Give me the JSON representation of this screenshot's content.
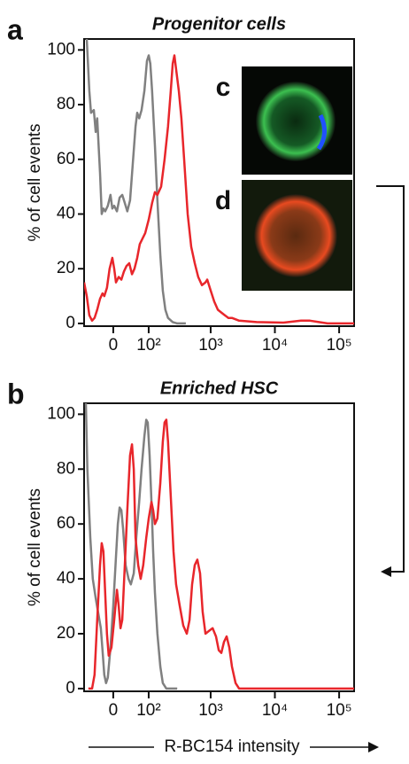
{
  "chart_data": [
    {
      "type": "line",
      "panel_label": "a",
      "title": "Progenitor cells",
      "ylabel": "% of cell events",
      "inset_labels": [
        "c",
        "d"
      ],
      "xscale": "asinh",
      "asinh_width": 61,
      "xlim": [
        -76,
        171000
      ],
      "ylim": [
        -1,
        104
      ],
      "xticks": [
        {
          "value": 0,
          "label": "0"
        },
        {
          "value": 100,
          "label": "10²"
        },
        {
          "value": 1000,
          "label": "10³"
        },
        {
          "value": 10000,
          "label": "10⁴"
        },
        {
          "value": 100000,
          "label": "10⁵"
        }
      ],
      "yticks": [
        0,
        20,
        40,
        60,
        80,
        100
      ],
      "series": [
        {
          "color": "#808080",
          "x": [
            -67,
            -59,
            -54,
            -46,
            -41,
            -37,
            -30,
            -26,
            -22,
            -18,
            -12,
            -6,
            -2,
            2,
            8,
            14,
            20,
            26,
            32,
            39,
            46,
            54,
            59,
            65,
            73,
            83,
            93,
            100,
            107,
            115,
            129,
            142,
            159,
            175,
            193,
            213,
            253,
            299,
            409
          ],
          "values": [
            104,
            85,
            77,
            78,
            70,
            75,
            55,
            40,
            42,
            41,
            43,
            47,
            42,
            43,
            41,
            46,
            47,
            44,
            41,
            45,
            58,
            72,
            77,
            75,
            78,
            85,
            96,
            98,
            95,
            85,
            65,
            45,
            25,
            12,
            5,
            2,
            0.5,
            0,
            0
          ]
        },
        {
          "color": "#e8262b",
          "x": [
            -76,
            -67,
            -59,
            -51,
            -44,
            -37,
            -30,
            -24,
            -20,
            -14,
            -8,
            -2,
            2,
            6,
            12,
            18,
            24,
            30,
            37,
            44,
            51,
            59,
            67,
            76,
            86,
            100,
            115,
            129,
            142,
            164,
            187,
            213,
            236,
            253,
            269,
            287,
            317,
            348,
            384,
            437,
            497,
            564,
            640,
            731,
            830,
            885,
            1000,
            1135,
            1293,
            1464,
            1665,
            1891,
            2147,
            2776,
            5190,
            13600,
            25560,
            35130,
            48400,
            66000,
            171000
          ],
          "values": [
            15,
            10,
            3,
            1,
            2,
            5,
            9,
            11,
            10,
            13,
            20,
            24,
            20,
            15,
            17,
            16,
            19,
            21,
            22,
            18,
            20,
            24,
            29,
            31,
            33,
            38,
            44,
            48,
            47,
            50,
            60,
            72,
            85,
            95,
            98,
            93,
            85,
            75,
            60,
            40,
            28,
            22,
            17,
            14,
            15,
            16,
            12,
            8,
            5,
            4,
            3,
            2,
            2,
            1,
            0.5,
            0.3,
            1,
            1,
            0.5,
            0,
            0
          ]
        }
      ]
    },
    {
      "type": "line",
      "panel_label": "b",
      "title": "Enriched HSC",
      "ylabel": "% of cell events",
      "xlabel": "R-BC154 intensity",
      "xscale": "asinh",
      "asinh_width": 61,
      "xlim": [
        -76,
        171000
      ],
      "ylim": [
        -1,
        104
      ],
      "xticks": [
        {
          "value": 0,
          "label": "0"
        },
        {
          "value": 100,
          "label": "10²"
        },
        {
          "value": 1000,
          "label": "10³"
        },
        {
          "value": 10000,
          "label": "10⁴"
        },
        {
          "value": 100000,
          "label": "10⁵"
        }
      ],
      "yticks": [
        0,
        20,
        40,
        60,
        80,
        100
      ],
      "series": [
        {
          "color": "#808080",
          "x": [
            -70,
            -65,
            -56,
            -49,
            -41,
            -35,
            -28,
            -24,
            -20,
            -16,
            -12,
            -6,
            0,
            6,
            10,
            14,
            18,
            22,
            28,
            35,
            41,
            49,
            56,
            65,
            73,
            83,
            90,
            96,
            104,
            112,
            120,
            129,
            142,
            159,
            175,
            200,
            299
          ],
          "values": [
            104,
            80,
            55,
            40,
            33,
            28,
            22,
            14,
            5,
            2,
            4,
            15,
            30,
            48,
            60,
            66,
            65,
            58,
            45,
            40,
            38,
            42,
            55,
            68,
            80,
            92,
            98,
            97,
            85,
            68,
            50,
            35,
            20,
            8,
            2,
            0,
            0
          ]
        },
        {
          "color": "#e8262b",
          "x": [
            -62,
            -51,
            -44,
            -37,
            -30,
            -26,
            -22,
            -18,
            -14,
            -10,
            -4,
            2,
            8,
            12,
            16,
            20,
            26,
            32,
            39,
            44,
            49,
            54,
            62,
            70,
            79,
            90,
            100,
            112,
            120,
            129,
            142,
            159,
            175,
            187,
            200,
            213,
            236,
            261,
            287,
            328,
            372,
            423,
            467,
            512,
            564,
            620,
            683,
            750,
            830,
            940,
            1074,
            1213,
            1335,
            1464,
            1610,
            1775,
            1952,
            2147,
            2440,
            2776,
            171000
          ],
          "values": [
            0,
            0,
            5,
            25,
            45,
            53,
            50,
            35,
            20,
            12,
            15,
            25,
            36,
            30,
            22,
            25,
            45,
            65,
            85,
            89,
            80,
            55,
            45,
            40,
            45,
            55,
            62,
            68,
            65,
            60,
            62,
            75,
            90,
            97,
            98,
            90,
            70,
            50,
            38,
            30,
            23,
            20,
            25,
            38,
            45,
            47,
            42,
            28,
            20,
            21,
            22,
            19,
            14,
            13,
            17,
            19,
            15,
            8,
            2,
            0,
            0
          ]
        }
      ]
    }
  ]
}
